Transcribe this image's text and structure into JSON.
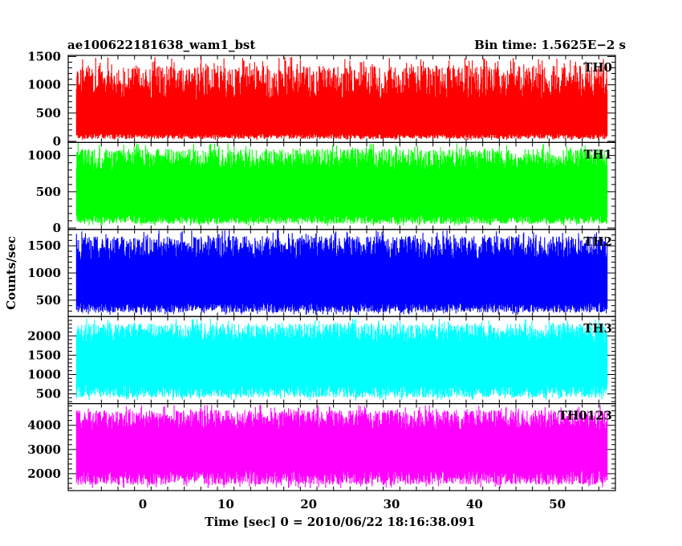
{
  "header": {
    "left_title": "ae100622181638_wam1_bst",
    "right_title": "Bin time: 1.5625E−2 s"
  },
  "axes": {
    "ylabel": "Counts/sec",
    "xlabel": "Time [sec] 0 = 2010/06/22 18:16:38.091"
  },
  "chart_data": {
    "type": "line",
    "x_range": [
      -8,
      56
    ],
    "xlim": [
      -9,
      57
    ],
    "x_ticks": [
      0,
      10,
      20,
      30,
      40,
      50
    ],
    "x_tick_labels": [
      "0",
      "10",
      "20",
      "30",
      "40",
      "50"
    ],
    "bin_time_s": 0.015625,
    "panels": [
      {
        "name": "TH0",
        "color": "#ff0000",
        "ylim": [
          -20,
          1520
        ],
        "yticks": [
          0,
          500,
          1000,
          1500
        ],
        "ytick_labels": [
          "0",
          "500",
          "1000",
          "1500"
        ],
        "y_mean": 420,
        "y_typical_low": 100,
        "y_typical_high": 950,
        "y_min": 20,
        "y_max": 1500
      },
      {
        "name": "TH1",
        "color": "#00ff00",
        "ylim": [
          -20,
          1180
        ],
        "yticks": [
          0,
          500,
          1000
        ],
        "ytick_labels": [
          "0",
          "500",
          "1000"
        ],
        "y_mean": 500,
        "y_typical_low": 130,
        "y_typical_high": 900,
        "y_min": 30,
        "y_max": 1170
      },
      {
        "name": "TH2",
        "color": "#0000ff",
        "ylim": [
          200,
          1800
        ],
        "yticks": [
          500,
          1000,
          1500
        ],
        "ytick_labels": [
          "500",
          "1000",
          "1500"
        ],
        "y_mean": 900,
        "y_typical_low": 380,
        "y_typical_high": 1400,
        "y_min": 230,
        "y_max": 1790
      },
      {
        "name": "TH3",
        "color": "#00ffff",
        "ylim": [
          250,
          2500
        ],
        "yticks": [
          500,
          1000,
          1500,
          2000
        ],
        "ytick_labels": [
          "500",
          "1000",
          "1500",
          "2000"
        ],
        "y_mean": 1300,
        "y_typical_low": 600,
        "y_typical_high": 2000,
        "y_min": 330,
        "y_max": 2450
      },
      {
        "name": "TH0123",
        "color": "#ff00ff",
        "ylim": [
          1300,
          4900
        ],
        "yticks": [
          2000,
          3000,
          4000
        ],
        "ytick_labels": [
          "2000",
          "3000",
          "4000"
        ],
        "y_mean": 3000,
        "y_typical_low": 1900,
        "y_typical_high": 4100,
        "y_min": 1400,
        "y_max": 4850
      }
    ]
  }
}
